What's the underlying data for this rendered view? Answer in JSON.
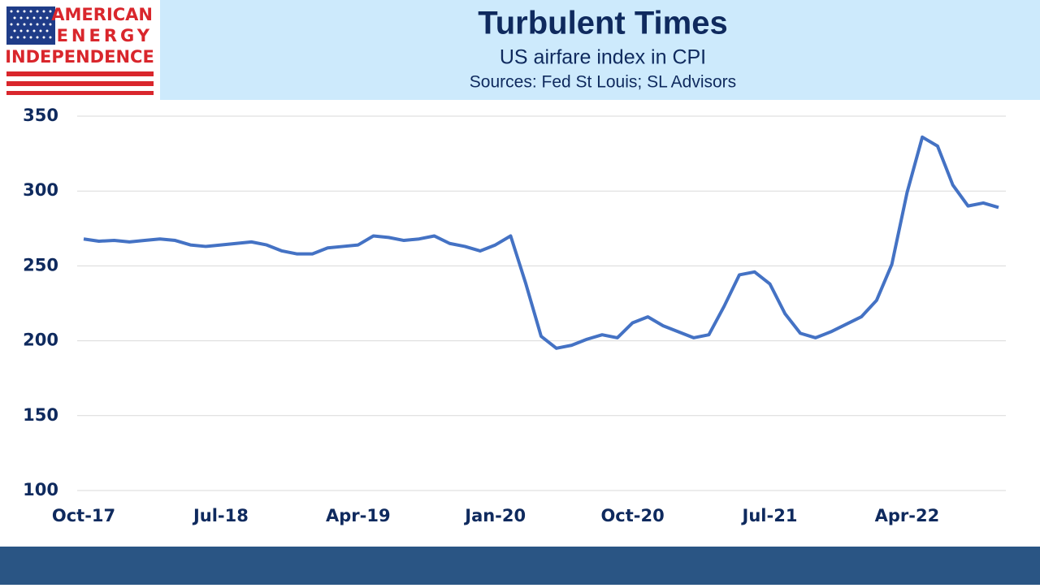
{
  "logo": {
    "lines": [
      "AMERICAN",
      "ENERGY",
      "INDEPENDENCE"
    ]
  },
  "chart_data": {
    "type": "line",
    "title": "Turbulent Times",
    "subtitle": "US airfare index in CPI",
    "source": "Sources: Fed St Louis; SL Advisors",
    "categories": [
      "Oct-17",
      null,
      null,
      null,
      null,
      null,
      null,
      null,
      null,
      "Jul-18",
      null,
      null,
      null,
      null,
      null,
      null,
      null,
      null,
      "Apr-19",
      null,
      null,
      null,
      null,
      null,
      null,
      null,
      null,
      "Jan-20",
      null,
      null,
      null,
      null,
      null,
      null,
      null,
      null,
      "Oct-20",
      null,
      null,
      null,
      null,
      null,
      null,
      null,
      null,
      "Jul-21",
      null,
      null,
      null,
      null,
      null,
      null,
      null,
      null,
      "Apr-22",
      null,
      null,
      null,
      null,
      null,
      null
    ],
    "series": [
      {
        "name": "US airfare index",
        "color": "#4472c4",
        "values": [
          268,
          266.5,
          267,
          266,
          267,
          268,
          267,
          264,
          263,
          264,
          265,
          266,
          264,
          260,
          258,
          258,
          262,
          263,
          264,
          270,
          269,
          267,
          268,
          270,
          265,
          263,
          260,
          264,
          270,
          238,
          203,
          195,
          197,
          201,
          204,
          202,
          212,
          216,
          210,
          206,
          202,
          204,
          223,
          244,
          246,
          238,
          218,
          205,
          202,
          206,
          211,
          216,
          227,
          251,
          299,
          336,
          330,
          304,
          290,
          292,
          289
        ]
      }
    ],
    "ylim": [
      100,
      350
    ],
    "yticks": [
      100,
      150,
      200,
      250,
      300,
      350
    ],
    "grid": true
  }
}
